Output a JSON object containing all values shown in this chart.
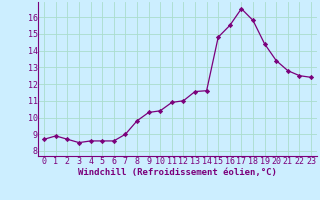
{
  "x": [
    0,
    1,
    2,
    3,
    4,
    5,
    6,
    7,
    8,
    9,
    10,
    11,
    12,
    13,
    14,
    15,
    16,
    17,
    18,
    19,
    20,
    21,
    22,
    23
  ],
  "y": [
    8.7,
    8.9,
    8.7,
    8.5,
    8.6,
    8.6,
    8.6,
    9.0,
    9.8,
    10.3,
    10.4,
    10.9,
    11.0,
    11.55,
    11.6,
    14.8,
    15.5,
    16.5,
    15.8,
    14.4,
    13.4,
    12.8,
    12.5,
    12.4
  ],
  "line_color": "#7B007B",
  "marker": "D",
  "marker_size": 2.2,
  "bg_color": "#cceeff",
  "grid_color": "#aaddcc",
  "xlabel": "Windchill (Refroidissement éolien,°C)",
  "xlabel_color": "#7B007B",
  "ylabel_ticks": [
    8,
    9,
    10,
    11,
    12,
    13,
    14,
    15,
    16
  ],
  "xlim": [
    -0.5,
    23.5
  ],
  "ylim": [
    7.7,
    16.9
  ],
  "tick_label_color": "#7B007B",
  "font_size": 6.0,
  "xlabel_font_size": 6.5,
  "lw": 0.9
}
